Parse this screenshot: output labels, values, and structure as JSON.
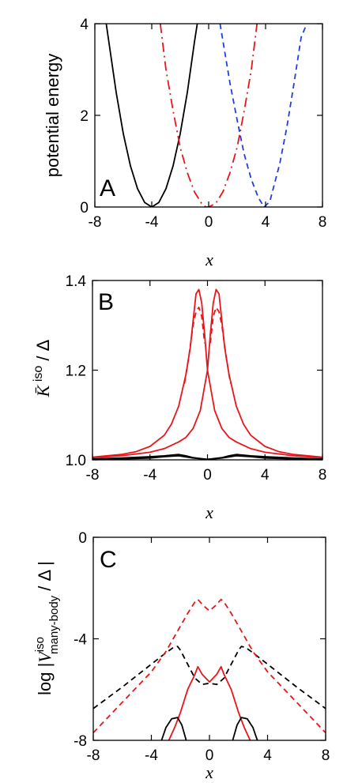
{
  "chart_data": [
    {
      "type": "line",
      "panel": "A",
      "xlabel": "x",
      "ylabel": "potential energy",
      "xlim": [
        -8,
        8
      ],
      "ylim": [
        0,
        4
      ],
      "xticks": [
        "-8",
        "-4",
        "0",
        "4",
        "8"
      ],
      "yticks": [
        "0",
        "2",
        "4"
      ],
      "grid": false,
      "series": [
        {
          "color": "#000000",
          "dash": "solid",
          "x": [
            -7.2,
            -6.5,
            -6.0,
            -5.5,
            -5.0,
            -4.5,
            -4.0,
            -3.5,
            -3.0,
            -2.5,
            -2.0,
            -1.5,
            -1.0,
            -0.8
          ],
          "y": [
            4.0,
            2.5,
            1.6,
            0.9,
            0.4,
            0.1,
            0.0,
            0.1,
            0.4,
            0.9,
            1.6,
            2.5,
            3.6,
            4.0
          ]
        },
        {
          "color": "#e8151b",
          "dash": "dashdot",
          "x": [
            -3.4,
            -3.0,
            -2.5,
            -2.0,
            -1.5,
            -1.0,
            -0.5,
            -0.2,
            0.0,
            0.5,
            1.0,
            1.5,
            2.0,
            2.5,
            3.0,
            3.4
          ],
          "y": [
            4.0,
            3.0,
            2.1,
            1.3,
            0.75,
            0.33,
            0.08,
            0.0,
            0.0,
            0.08,
            0.33,
            0.75,
            1.3,
            2.1,
            3.0,
            4.0
          ]
        },
        {
          "color": "#1f3fe0",
          "dash": "dashed",
          "x": [
            0.8,
            1.5,
            2.0,
            2.5,
            3.0,
            3.5,
            3.9,
            4.3,
            5.0,
            5.5,
            6.0,
            6.5,
            6.9
          ],
          "y": [
            4.0,
            2.7,
            1.9,
            1.15,
            0.6,
            0.2,
            0.0,
            0.12,
            0.95,
            1.75,
            2.7,
            3.7,
            4.0
          ]
        }
      ]
    },
    {
      "type": "line",
      "panel": "B",
      "xlabel": "x",
      "ylabel": "K̄ iso / Δ",
      "xlim": [
        -8,
        8
      ],
      "ylim": [
        1.0,
        1.4
      ],
      "xticks": [
        "-8",
        "-4",
        "0",
        "4",
        "8"
      ],
      "yticks": [
        "1.0",
        "1.2",
        "1.4"
      ],
      "grid": false,
      "series": [
        {
          "color": "#e8151b",
          "dash": "solid",
          "x": [
            -8,
            -6,
            -5,
            -4,
            -3,
            -2.5,
            -2,
            -1.5,
            -1.2,
            -1.0,
            -0.8,
            -0.6,
            -0.4,
            -0.2,
            0,
            0.5,
            1,
            1.5,
            2,
            3,
            4,
            6,
            8
          ],
          "y": [
            1.006,
            1.012,
            1.018,
            1.03,
            1.055,
            1.08,
            1.12,
            1.19,
            1.25,
            1.31,
            1.37,
            1.38,
            1.35,
            1.28,
            1.2,
            1.11,
            1.07,
            1.05,
            1.04,
            1.025,
            1.017,
            1.009,
            1.005
          ]
        },
        {
          "color": "#e8151b",
          "dash": "solid",
          "x": [
            -8,
            -6,
            -4,
            -3,
            -2,
            -1.5,
            -1,
            -0.5,
            0,
            0.2,
            0.4,
            0.6,
            0.8,
            1.0,
            1.2,
            1.5,
            2,
            2.5,
            3,
            4,
            5,
            6,
            8
          ],
          "y": [
            1.005,
            1.009,
            1.017,
            1.025,
            1.04,
            1.05,
            1.07,
            1.11,
            1.2,
            1.28,
            1.35,
            1.38,
            1.37,
            1.31,
            1.25,
            1.19,
            1.12,
            1.08,
            1.055,
            1.03,
            1.018,
            1.012,
            1.006
          ]
        },
        {
          "color": "#e8151b",
          "dash": "dashed",
          "x": [
            -1.6,
            -1.3,
            -1.0,
            -0.8,
            -0.6,
            -0.4,
            -0.2
          ],
          "y": [
            1.17,
            1.23,
            1.3,
            1.33,
            1.34,
            1.32,
            1.26
          ]
        },
        {
          "color": "#e8151b",
          "dash": "dashed",
          "x": [
            0.2,
            0.4,
            0.6,
            0.8,
            1.0,
            1.3,
            1.6
          ],
          "y": [
            1.26,
            1.32,
            1.34,
            1.33,
            1.3,
            1.23,
            1.17
          ]
        },
        {
          "color": "#000000",
          "dash": "solid",
          "x": [
            -8,
            -6,
            -4,
            -3,
            -2,
            -1.5,
            -1,
            0,
            1,
            2,
            3,
            4,
            6,
            8
          ],
          "y": [
            1.002,
            1.004,
            1.007,
            1.009,
            1.012,
            1.009,
            1.005,
            1.001,
            1.004,
            1.009,
            1.007,
            1.004,
            1.002,
            1.001
          ]
        },
        {
          "color": "#000000",
          "dash": "solid",
          "x": [
            -8,
            -6,
            -4,
            -3,
            -2,
            -1,
            0,
            1,
            1.5,
            2,
            3,
            4,
            6,
            8
          ],
          "y": [
            1.001,
            1.002,
            1.004,
            1.007,
            1.009,
            1.004,
            1.001,
            1.005,
            1.009,
            1.012,
            1.009,
            1.007,
            1.004,
            1.002
          ]
        }
      ]
    },
    {
      "type": "line",
      "panel": "C",
      "xlabel": "x",
      "ylabel": "log |V iso many-body / Δ |",
      "xlim": [
        -8,
        8
      ],
      "ylim": [
        -8,
        0
      ],
      "xticks": [
        "-8",
        "-4",
        "0",
        "4",
        "8"
      ],
      "yticks": [
        "-8",
        "-4",
        "0"
      ],
      "grid": false,
      "series": [
        {
          "color": "#000000",
          "dash": "dashed",
          "x": [
            -8,
            -6,
            -4,
            -3,
            -2.5,
            -2.2,
            -2,
            -1.5,
            -1,
            -0.5,
            0,
            0.5,
            1,
            1.5,
            2,
            2.2,
            2.5,
            3,
            4,
            6,
            8
          ],
          "y": [
            -6.75,
            -5.9,
            -5.0,
            -4.55,
            -4.35,
            -4.3,
            -4.45,
            -5.0,
            -5.55,
            -5.8,
            -5.75,
            -5.8,
            -5.55,
            -5.0,
            -4.45,
            -4.3,
            -4.35,
            -4.55,
            -5.0,
            -5.9,
            -6.75
          ]
        },
        {
          "color": "#e8151b",
          "dash": "dashed",
          "x": [
            -8,
            -6,
            -4,
            -3,
            -2,
            -1.5,
            -1.0,
            -0.8,
            -0.4,
            0,
            0.4,
            0.8,
            1.0,
            1.5,
            2,
            3,
            4,
            6,
            8
          ],
          "y": [
            -7.7,
            -6.5,
            -5.3,
            -4.5,
            -3.5,
            -3.0,
            -2.55,
            -2.45,
            -2.7,
            -2.9,
            -2.7,
            -2.45,
            -2.55,
            -3.0,
            -3.5,
            -4.5,
            -5.3,
            -6.5,
            -7.7
          ]
        },
        {
          "color": "#e8151b",
          "dash": "solid",
          "x": [
            -2.8,
            -2.4,
            -2,
            -1.5,
            -1.0,
            -0.8,
            -0.5,
            0,
            0.5,
            0.8,
            1.0,
            1.5,
            2,
            2.4,
            2.8
          ],
          "y": [
            -8.0,
            -7.5,
            -6.9,
            -6.0,
            -5.4,
            -5.1,
            -5.4,
            -5.7,
            -5.4,
            -5.1,
            -5.4,
            -6.0,
            -6.9,
            -7.5,
            -8.0
          ]
        },
        {
          "color": "#000000",
          "dash": "solid",
          "x": [
            -3.3,
            -3.0,
            -2.6,
            -2.2,
            -1.9,
            -1.6
          ],
          "y": [
            -8.0,
            -7.5,
            -7.15,
            -7.1,
            -7.4,
            -8.0
          ]
        },
        {
          "color": "#000000",
          "dash": "solid",
          "x": [
            1.6,
            1.9,
            2.2,
            2.6,
            3.0,
            3.3
          ],
          "y": [
            -8.0,
            -7.4,
            -7.1,
            -7.15,
            -7.5,
            -8.0
          ]
        }
      ]
    }
  ],
  "panels": {
    "a": {
      "letter": "A"
    },
    "b": {
      "letter": "B"
    },
    "c": {
      "letter": "C"
    }
  }
}
